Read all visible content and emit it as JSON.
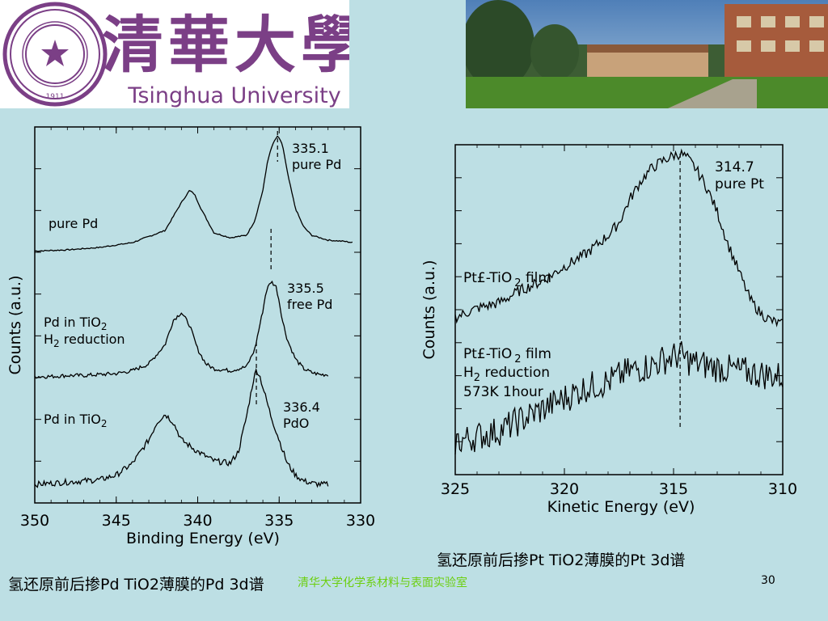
{
  "header": {
    "university_chinese": "清華大學",
    "university_english": "Tsinghua University",
    "seal_year": "1911",
    "seal_text": "TSINGHUA UNIVERSITY"
  },
  "colors": {
    "background": "#bddfe4",
    "logo_purple": "#7b3f86",
    "footer_green": "#6ccf10"
  },
  "captions": {
    "left": "氢还原前后掺Pd TiO2薄膜的Pd 3d谱",
    "right": "氢还原前后掺Pt TiO2薄膜的Pt 3d谱"
  },
  "footer": {
    "lab": "清华大学化学系材料与表面实验室",
    "page": "30"
  },
  "chart_data": [
    {
      "type": "line",
      "xlabel": "Binding Energy (eV)",
      "ylabel": "Counts (a.u.)",
      "xlim": [
        350,
        330
      ],
      "x_ticks": [
        "350",
        "345",
        "340",
        "335",
        "330"
      ],
      "series": [
        {
          "name": "pure Pd",
          "x": [
            350,
            348,
            346,
            344,
            342,
            341,
            340.5,
            340.2,
            339.8,
            339,
            338,
            337,
            336.5,
            336,
            335.7,
            335.4,
            335.1,
            334.8,
            334.5,
            334,
            333.5,
            333,
            332,
            331,
            330.5
          ],
          "y": [
            0.05,
            0.06,
            0.08,
            0.12,
            0.22,
            0.45,
            0.55,
            0.52,
            0.4,
            0.2,
            0.16,
            0.18,
            0.3,
            0.55,
            0.8,
            0.93,
            1.0,
            0.93,
            0.7,
            0.4,
            0.25,
            0.18,
            0.14,
            0.13,
            0.12
          ]
        },
        {
          "name": "Pd in TiO2 H2 reduction",
          "x": [
            350,
            349,
            348,
            347,
            346,
            345,
            344,
            343,
            342,
            341.5,
            341,
            340.5,
            340,
            339.5,
            339,
            338,
            337,
            336.5,
            336,
            335.8,
            335.5,
            335.2,
            335,
            334.8,
            334.5,
            334,
            333.5,
            333,
            332.5,
            332
          ],
          "y": [
            0.02,
            0.02,
            0.03,
            0.03,
            0.04,
            0.05,
            0.08,
            0.15,
            0.35,
            0.6,
            0.68,
            0.55,
            0.3,
            0.15,
            0.1,
            0.08,
            0.12,
            0.3,
            0.7,
            0.9,
            1.0,
            0.95,
            0.8,
            0.6,
            0.4,
            0.2,
            0.1,
            0.06,
            0.04,
            0.04
          ]
        },
        {
          "name": "Pd in TiO2",
          "x": [
            350,
            349,
            348,
            347,
            346,
            345,
            344,
            343,
            342.5,
            342,
            341.5,
            341,
            340,
            339,
            338,
            337.5,
            337,
            336.6,
            336.4,
            336.2,
            336,
            335.5,
            335,
            334.5,
            334,
            333.5,
            333,
            332.5,
            332
          ],
          "y": [
            0.02,
            0.03,
            0.04,
            0.05,
            0.06,
            0.1,
            0.2,
            0.4,
            0.55,
            0.62,
            0.55,
            0.4,
            0.3,
            0.22,
            0.2,
            0.3,
            0.6,
            0.9,
            1.0,
            0.95,
            0.85,
            0.6,
            0.4,
            0.2,
            0.1,
            0.05,
            0.03,
            0.02,
            0.02
          ]
        }
      ],
      "annotations": [
        {
          "value": "335.1",
          "label": "pure Pd",
          "x": 335.1
        },
        {
          "value": "335.5",
          "label": "free Pd",
          "x": 335.5
        },
        {
          "value": "336.4",
          "label": "PdO",
          "x": 336.4
        }
      ],
      "series_labels": [
        {
          "text": "pure Pd"
        },
        {
          "line1": "Pd in TiO",
          "sub1": "2",
          "line2_sub": "2",
          "line2": " reduction",
          "line2_prefix": "H"
        },
        {
          "text": "Pd in TiO",
          "sub": "2"
        }
      ]
    },
    {
      "type": "line",
      "xlabel": "Kinetic Energy (eV)",
      "ylabel": "Counts (a.u.)",
      "xlim": [
        325,
        310
      ],
      "x_ticks": [
        "325",
        "320",
        "315",
        "310"
      ],
      "series": [
        {
          "name": "Pt£-TiO 2 film",
          "x": [
            325,
            324,
            323,
            322,
            321,
            320,
            319,
            318,
            317.5,
            317,
            316.5,
            316,
            315.5,
            315,
            314.7,
            314.4,
            314,
            313.5,
            313,
            312.5,
            312,
            311.5,
            311,
            310.5,
            310
          ],
          "y": [
            0.1,
            0.15,
            0.18,
            0.25,
            0.3,
            0.38,
            0.45,
            0.55,
            0.62,
            0.75,
            0.85,
            0.92,
            0.96,
            0.99,
            1.0,
            0.98,
            0.92,
            0.82,
            0.68,
            0.5,
            0.35,
            0.2,
            0.12,
            0.08,
            0.06
          ]
        },
        {
          "name": "Pt£-TiO 2 film H2 reduction 573K 1hour",
          "x": [
            325,
            324,
            323,
            322,
            321,
            320,
            319,
            318,
            317,
            316,
            315.5,
            315,
            314.7,
            314.4,
            314,
            313,
            312,
            311,
            310
          ],
          "y": [
            0.1,
            0.15,
            0.2,
            0.3,
            0.4,
            0.5,
            0.6,
            0.65,
            0.75,
            0.8,
            0.85,
            0.88,
            0.9,
            0.85,
            0.82,
            0.78,
            0.75,
            0.72,
            0.7
          ]
        }
      ],
      "annotations": [
        {
          "value": "314.7",
          "label": "pure Pt",
          "x": 314.7
        }
      ],
      "series_labels": [
        {
          "text": "Pt£-TiO",
          "sub": "2",
          "tail": " film"
        },
        {
          "text": "Pt£-TiO",
          "sub": "2",
          "tail": " film",
          "line2_prefix": "H",
          "line2_sub": "2",
          "line2": " reduction",
          "line3": "573K 1hour"
        }
      ]
    }
  ]
}
